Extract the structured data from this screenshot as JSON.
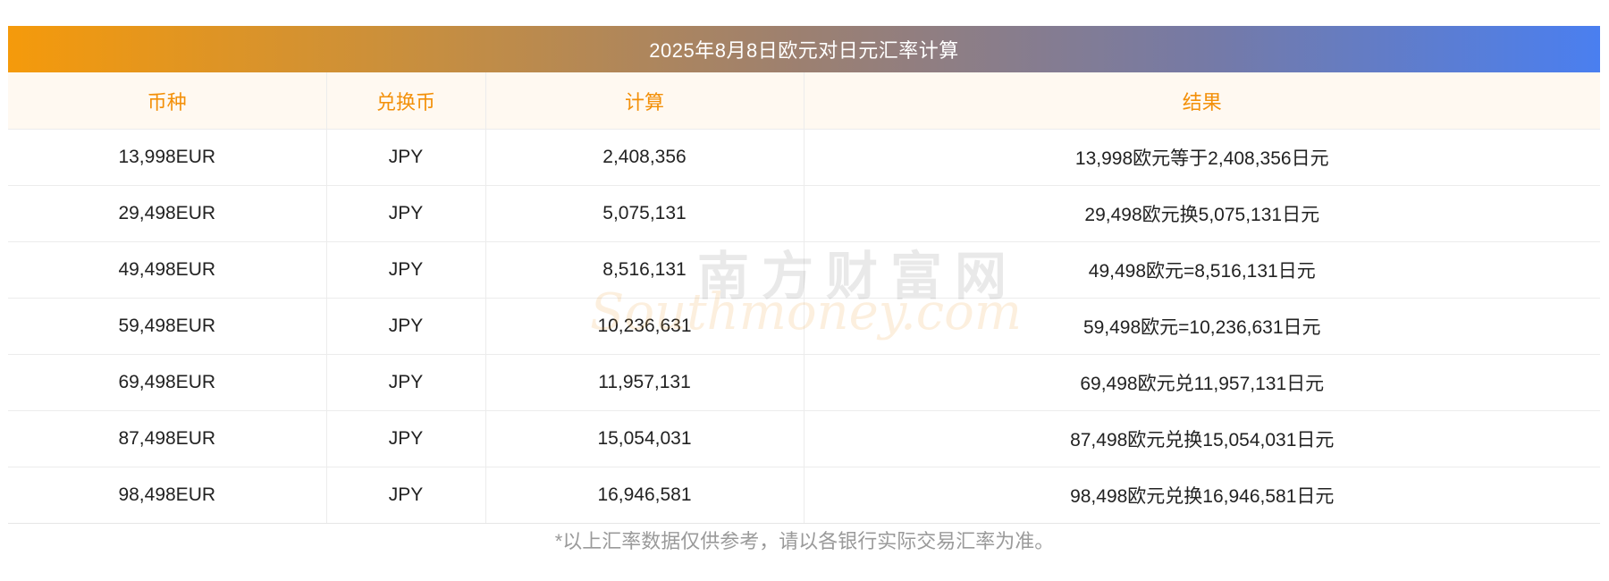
{
  "title": "2025年8月8日欧元对日元汇率计算",
  "headers": [
    "币种",
    "兑换币",
    "计算",
    "结果"
  ],
  "rows": [
    {
      "currency": "13,998EUR",
      "target": "JPY",
      "calc": "2,408,356",
      "result": "13,998欧元等于2,408,356日元"
    },
    {
      "currency": "29,498EUR",
      "target": "JPY",
      "calc": "5,075,131",
      "result": "29,498欧元换5,075,131日元"
    },
    {
      "currency": "49,498EUR",
      "target": "JPY",
      "calc": "8,516,131",
      "result": "49,498欧元=8,516,131日元"
    },
    {
      "currency": "59,498EUR",
      "target": "JPY",
      "calc": "10,236,631",
      "result": "59,498欧元=10,236,631日元"
    },
    {
      "currency": "69,498EUR",
      "target": "JPY",
      "calc": "11,957,131",
      "result": "69,498欧元兑11,957,131日元"
    },
    {
      "currency": "87,498EUR",
      "target": "JPY",
      "calc": "15,054,031",
      "result": "87,498欧元兑换15,054,031日元"
    },
    {
      "currency": "98,498EUR",
      "target": "JPY",
      "calc": "16,946,581",
      "result": "98,498欧元兑换16,946,581日元"
    }
  ],
  "footnote": "*以上汇率数据仅供参考，请以各银行实际交易汇率为准。",
  "watermark": {
    "cn": "南方财富网",
    "en": "Southmoney.com"
  },
  "colors": {
    "header_text": "#f39009",
    "title_gradient_start": "#f59a0b",
    "title_gradient_end": "#4a7ff0"
  }
}
